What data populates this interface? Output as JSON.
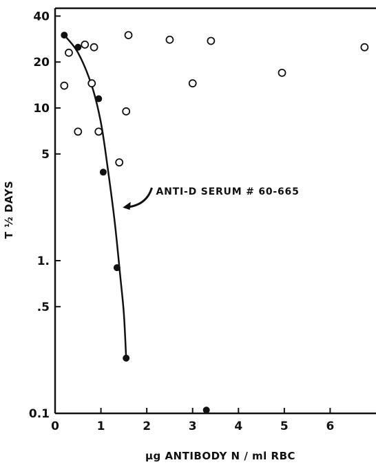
{
  "chart_data": {
    "type": "scatter",
    "title": "",
    "xlabel": "μg ANTIBODY N / ml RBC",
    "ylabel": "T ½ DAYS",
    "x_scale": "linear",
    "y_scale": "log",
    "xlim": [
      0,
      7
    ],
    "ylim": [
      0.1,
      45
    ],
    "x_ticks": [
      {
        "value": 0,
        "label": "0"
      },
      {
        "value": 1,
        "label": "1"
      },
      {
        "value": 2,
        "label": "2"
      },
      {
        "value": 3,
        "label": "3"
      },
      {
        "value": 4,
        "label": "4"
      },
      {
        "value": 5,
        "label": "5"
      },
      {
        "value": 6,
        "label": "6"
      }
    ],
    "y_ticks": [
      {
        "value": 0.1,
        "label": "0.1"
      },
      {
        "value": 0.5,
        "label": ".5"
      },
      {
        "value": 1,
        "label": "1."
      },
      {
        "value": 5,
        "label": "5"
      },
      {
        "value": 10,
        "label": "10"
      },
      {
        "value": 20,
        "label": "20"
      },
      {
        "value": 40,
        "label": "40"
      }
    ],
    "grid": false,
    "series": [
      {
        "marker": "filled-circle",
        "color": "#111111",
        "points": [
          {
            "x": 0.2,
            "y": 30
          },
          {
            "x": 0.5,
            "y": 25
          },
          {
            "x": 0.95,
            "y": 11.5
          },
          {
            "x": 1.05,
            "y": 3.8
          },
          {
            "x": 1.35,
            "y": 0.9
          },
          {
            "x": 1.55,
            "y": 0.23
          },
          {
            "x": 3.3,
            "y": 0.105
          }
        ]
      },
      {
        "marker": "open-circle",
        "color": "#111111",
        "points": [
          {
            "x": 0.2,
            "y": 14
          },
          {
            "x": 0.3,
            "y": 23
          },
          {
            "x": 0.5,
            "y": 7
          },
          {
            "x": 0.65,
            "y": 26
          },
          {
            "x": 0.8,
            "y": 14.5
          },
          {
            "x": 0.85,
            "y": 25
          },
          {
            "x": 0.95,
            "y": 7
          },
          {
            "x": 1.4,
            "y": 4.4
          },
          {
            "x": 1.55,
            "y": 9.5
          },
          {
            "x": 1.6,
            "y": 30
          },
          {
            "x": 2.5,
            "y": 28
          },
          {
            "x": 3.0,
            "y": 14.5
          },
          {
            "x": 3.4,
            "y": 27.5
          },
          {
            "x": 4.95,
            "y": 17
          },
          {
            "x": 6.75,
            "y": 25
          }
        ]
      }
    ],
    "fit_curve": {
      "color": "#111111",
      "points": [
        {
          "x": 0.2,
          "y": 30
        },
        {
          "x": 0.5,
          "y": 23
        },
        {
          "x": 0.8,
          "y": 14
        },
        {
          "x": 1.0,
          "y": 8
        },
        {
          "x": 1.15,
          "y": 4
        },
        {
          "x": 1.3,
          "y": 1.8
        },
        {
          "x": 1.42,
          "y": 0.8
        },
        {
          "x": 1.5,
          "y": 0.45
        },
        {
          "x": 1.55,
          "y": 0.23
        }
      ]
    },
    "annotations": [
      {
        "text": "ANTI-D SERUM # 60-665",
        "x": 1.75,
        "y": 2.6,
        "arrow_to": {
          "x": 1.43,
          "y": 2.1
        }
      }
    ]
  }
}
